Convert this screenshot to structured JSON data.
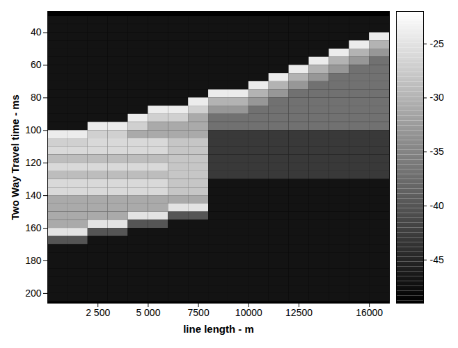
{
  "chart_data": {
    "type": "heatmap",
    "x_label": "line length - m",
    "y_label": "Two Way Travel time - ms",
    "xlim": [
      0,
      17000
    ],
    "ylim": [
      27,
      206
    ],
    "xticks": [
      {
        "value": 2500,
        "label": "2 500"
      },
      {
        "value": 5000,
        "label": "5 000"
      },
      7500,
      10000,
      12500,
      16000
    ],
    "yticks": [
      40,
      60,
      80,
      100,
      120,
      140,
      160,
      180,
      200
    ],
    "colorbar": {
      "range": [
        -49,
        -22
      ],
      "ticks": [
        -25,
        -30,
        -35,
        -40,
        -45
      ]
    },
    "x": [
      500,
      1500,
      2500,
      3500,
      4500,
      5500,
      6500,
      7500,
      8500,
      9500,
      10500,
      11500,
      12500,
      13500,
      14500,
      15500,
      16500
    ],
    "y": [
      32.5,
      37.5,
      42.5,
      47.5,
      52.5,
      57.5,
      62.5,
      67.5,
      72.5,
      77.5,
      82.5,
      87.5,
      92.5,
      97.5,
      102.5,
      107.5,
      112.5,
      117.5,
      122.5,
      127.5,
      132.5,
      137.5,
      142.5,
      147.5,
      152.5,
      157.5,
      162.5,
      167.5,
      172.5,
      177.5,
      182.5,
      187.5,
      192.5,
      197.5,
      202.5
    ],
    "values": [
      [
        -47,
        -47,
        -47,
        -47,
        -47,
        -47,
        -47,
        -47,
        -47,
        -47,
        -47,
        -47,
        -47,
        -47,
        -47,
        -47,
        -47
      ],
      [
        -47,
        -47,
        -47,
        -47,
        -47,
        -47,
        -47,
        -47,
        -47,
        -47,
        -47,
        -47,
        -47,
        -47,
        -47,
        -47,
        -47
      ],
      [
        -47,
        -47,
        -47,
        -47,
        -47,
        -47,
        -47,
        -47,
        -47,
        -47,
        -47,
        -47,
        -47,
        -47,
        -47,
        -47,
        -24
      ],
      [
        -47,
        -47,
        -47,
        -47,
        -47,
        -47,
        -47,
        -47,
        -47,
        -47,
        -47,
        -47,
        -47,
        -47,
        -47,
        -24,
        -30
      ],
      [
        -47,
        -47,
        -47,
        -47,
        -47,
        -47,
        -47,
        -47,
        -47,
        -47,
        -47,
        -47,
        -47,
        -47,
        -24,
        -30,
        -33
      ],
      [
        -47,
        -47,
        -47,
        -47,
        -47,
        -47,
        -47,
        -47,
        -47,
        -47,
        -47,
        -47,
        -47,
        -24,
        -30,
        -33,
        -37
      ],
      [
        -47,
        -47,
        -47,
        -47,
        -47,
        -47,
        -47,
        -47,
        -47,
        -47,
        -47,
        -47,
        -24,
        -30,
        -33,
        -37,
        -37
      ],
      [
        -47,
        -47,
        -47,
        -47,
        -47,
        -47,
        -47,
        -47,
        -47,
        -47,
        -47,
        -24,
        -30,
        -33,
        -37,
        -37,
        -37
      ],
      [
        -47,
        -47,
        -47,
        -47,
        -47,
        -47,
        -47,
        -47,
        -47,
        -47,
        -24,
        -30,
        -33,
        -37,
        -37,
        -37,
        -37
      ],
      [
        -47,
        -47,
        -47,
        -47,
        -47,
        -47,
        -47,
        -47,
        -24,
        -24,
        -30,
        -33,
        -37,
        -37,
        -37,
        -37,
        -37
      ],
      [
        -47,
        -47,
        -47,
        -47,
        -47,
        -47,
        -47,
        -24,
        -30,
        -30,
        -33,
        -37,
        -37,
        -37,
        -37,
        -37,
        -37
      ],
      [
        -47,
        -47,
        -47,
        -47,
        -47,
        -24,
        -24,
        -27,
        -33,
        -33,
        -37,
        -37,
        -37,
        -37,
        -37,
        -37,
        -37
      ],
      [
        -47,
        -47,
        -47,
        -47,
        -24,
        -27,
        -27,
        -31,
        -37,
        -37,
        -37,
        -37,
        -37,
        -37,
        -37,
        -37,
        -37
      ],
      [
        -47,
        -47,
        -24,
        -24,
        -27,
        -31,
        -31,
        -31,
        -37,
        -37,
        -37,
        -37,
        -37,
        -37,
        -37,
        -37,
        -37
      ],
      [
        -24,
        -24,
        -27,
        -27,
        -31,
        -31,
        -31,
        -31,
        -43,
        -43,
        -43,
        -43,
        -43,
        -43,
        -43,
        -43,
        -43
      ],
      [
        -27,
        -27,
        -26,
        -26,
        -26,
        -26,
        -28,
        -28,
        -43,
        -43,
        -43,
        -43,
        -43,
        -43,
        -43,
        -43,
        -43
      ],
      [
        -26,
        -26,
        -26,
        -26,
        -26,
        -26,
        -28,
        -28,
        -43,
        -43,
        -43,
        -43,
        -43,
        -43,
        -43,
        -43,
        -43
      ],
      [
        -29,
        -29,
        -29,
        -29,
        -29,
        -29,
        -28,
        -28,
        -43,
        -43,
        -43,
        -43,
        -43,
        -43,
        -43,
        -43,
        -43
      ],
      [
        -26,
        -26,
        -26,
        -26,
        -26,
        -26,
        -28,
        -28,
        -43,
        -43,
        -43,
        -43,
        -43,
        -43,
        -43,
        -43,
        -43
      ],
      [
        -29,
        -29,
        -29,
        -29,
        -29,
        -29,
        -28,
        -28,
        -43,
        -43,
        -43,
        -43,
        -43,
        -43,
        -43,
        -43,
        -43
      ],
      [
        -26,
        -26,
        -26,
        -26,
        -26,
        -26,
        -28,
        -28,
        -47,
        -47,
        -47,
        -47,
        -47,
        -47,
        -47,
        -47,
        -47
      ],
      [
        -26,
        -26,
        -26,
        -26,
        -26,
        -26,
        -28,
        -28,
        -47,
        -47,
        -47,
        -47,
        -47,
        -47,
        -47,
        -47,
        -47
      ],
      [
        -31,
        -31,
        -31,
        -31,
        -31,
        -31,
        -31,
        -31,
        -47,
        -47,
        -47,
        -47,
        -47,
        -47,
        -47,
        -47,
        -47
      ],
      [
        -31,
        -31,
        -31,
        -31,
        -31,
        -31,
        -25,
        -25,
        -47,
        -47,
        -47,
        -47,
        -47,
        -47,
        -47,
        -47,
        -47
      ],
      [
        -31,
        -31,
        -31,
        -31,
        -25,
        -25,
        -40,
        -40,
        -47,
        -47,
        -47,
        -47,
        -47,
        -47,
        -47,
        -47,
        -47
      ],
      [
        -31,
        -31,
        -25,
        -25,
        -40,
        -40,
        -47,
        -47,
        -47,
        -47,
        -47,
        -47,
        -47,
        -47,
        -47,
        -47,
        -47
      ],
      [
        -25,
        -25,
        -40,
        -40,
        -47,
        -47,
        -47,
        -47,
        -47,
        -47,
        -47,
        -47,
        -47,
        -47,
        -47,
        -47,
        -47
      ],
      [
        -40,
        -40,
        -47,
        -47,
        -47,
        -47,
        -47,
        -47,
        -47,
        -47,
        -47,
        -47,
        -47,
        -47,
        -47,
        -47,
        -47
      ],
      [
        -47,
        -47,
        -47,
        -47,
        -47,
        -47,
        -47,
        -47,
        -47,
        -47,
        -47,
        -47,
        -47,
        -47,
        -47,
        -47,
        -47
      ],
      [
        -47,
        -47,
        -47,
        -47,
        -47,
        -47,
        -47,
        -47,
        -47,
        -47,
        -47,
        -47,
        -47,
        -47,
        -47,
        -47,
        -47
      ],
      [
        -47,
        -47,
        -47,
        -47,
        -47,
        -47,
        -47,
        -47,
        -47,
        -47,
        -47,
        -47,
        -47,
        -47,
        -47,
        -47,
        -47
      ],
      [
        -47,
        -47,
        -47,
        -47,
        -47,
        -47,
        -47,
        -47,
        -47,
        -47,
        -47,
        -47,
        -47,
        -47,
        -47,
        -47,
        -47
      ],
      [
        -47,
        -47,
        -47,
        -47,
        -47,
        -47,
        -47,
        -47,
        -47,
        -47,
        -47,
        -47,
        -47,
        -47,
        -47,
        -47,
        -47
      ],
      [
        -47,
        -47,
        -47,
        -47,
        -47,
        -47,
        -47,
        -47,
        -47,
        -47,
        -47,
        -47,
        -47,
        -47,
        -47,
        -47,
        -47
      ],
      [
        -47,
        -47,
        -47,
        -47,
        -47,
        -47,
        -47,
        -47,
        -47,
        -47,
        -47,
        -47,
        -47,
        -47,
        -47,
        -47,
        -47
      ]
    ]
  }
}
